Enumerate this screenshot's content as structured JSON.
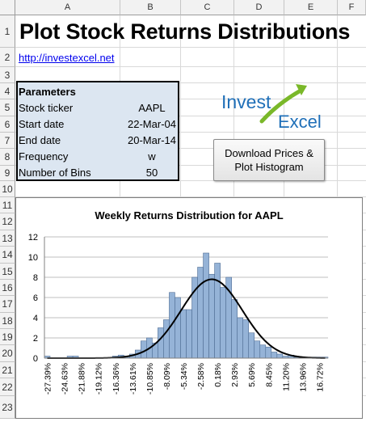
{
  "spreadsheet": {
    "columns": [
      "A",
      "B",
      "C",
      "D",
      "E",
      "F"
    ],
    "rows": [
      "1",
      "2",
      "3",
      "4",
      "5",
      "6",
      "7",
      "8",
      "9",
      "10",
      "11",
      "12",
      "13",
      "14",
      "15",
      "16",
      "17",
      "18",
      "19",
      "20",
      "21",
      "22",
      "23"
    ]
  },
  "title": "Plot Stock Returns Distributions",
  "link": "http://investexcel.net",
  "parameters": {
    "header": "Parameters",
    "items": [
      {
        "label": "Stock ticker",
        "value": "AAPL"
      },
      {
        "label": "Start date",
        "value": "22-Mar-04"
      },
      {
        "label": "End date",
        "value": "20-Mar-14"
      },
      {
        "label": "Frequency",
        "value": "w"
      },
      {
        "label": "Number of Bins",
        "value": "50"
      }
    ]
  },
  "logo": {
    "word1": "Invest",
    "word2": "Excel",
    "icon": "rising-arrow-icon",
    "color_dark": "#1f6fb8",
    "color_green": "#7ab829"
  },
  "button": {
    "line1": "Download Prices &",
    "line2": "Plot Histogram"
  },
  "chart_data": {
    "type": "bar",
    "title": "Weekly Returns Distribution for AAPL",
    "xlabel": "",
    "ylabel": "",
    "ylim": [
      0,
      12
    ],
    "yticks": [
      0,
      2,
      4,
      6,
      8,
      10,
      12
    ],
    "grid": true,
    "legend": "none",
    "bar_color": "#95b3d7",
    "xtick_labels": [
      "-27.39%",
      "-24.63%",
      "-21.88%",
      "-19.12%",
      "-16.36%",
      "-13.61%",
      "-10.85%",
      "-8.09%",
      "-5.34%",
      "-2.58%",
      "0.18%",
      "2.93%",
      "5.69%",
      "8.45%",
      "11.20%",
      "13.96%",
      "16.72%"
    ],
    "values": [
      0.2,
      0,
      0,
      0,
      0.2,
      0.2,
      0,
      0,
      0,
      0,
      0,
      0,
      0.2,
      0.3,
      0.2,
      0.4,
      0.8,
      1.7,
      2.0,
      1.5,
      3.0,
      3.8,
      6.5,
      6.0,
      4.8,
      4.8,
      8.0,
      9.0,
      10.4,
      8.3,
      9.4,
      7.0,
      8.0,
      5.8,
      4.0,
      3.8,
      2.5,
      1.7,
      1.3,
      1.1,
      0.6,
      0.4,
      0.2,
      0.3,
      0.1,
      0.1,
      0,
      0.1,
      0.1,
      0.1
    ],
    "fit_curve": {
      "type": "normal",
      "peak": 7.8,
      "center_index": 29.0,
      "sd_index": 5.4
    }
  }
}
